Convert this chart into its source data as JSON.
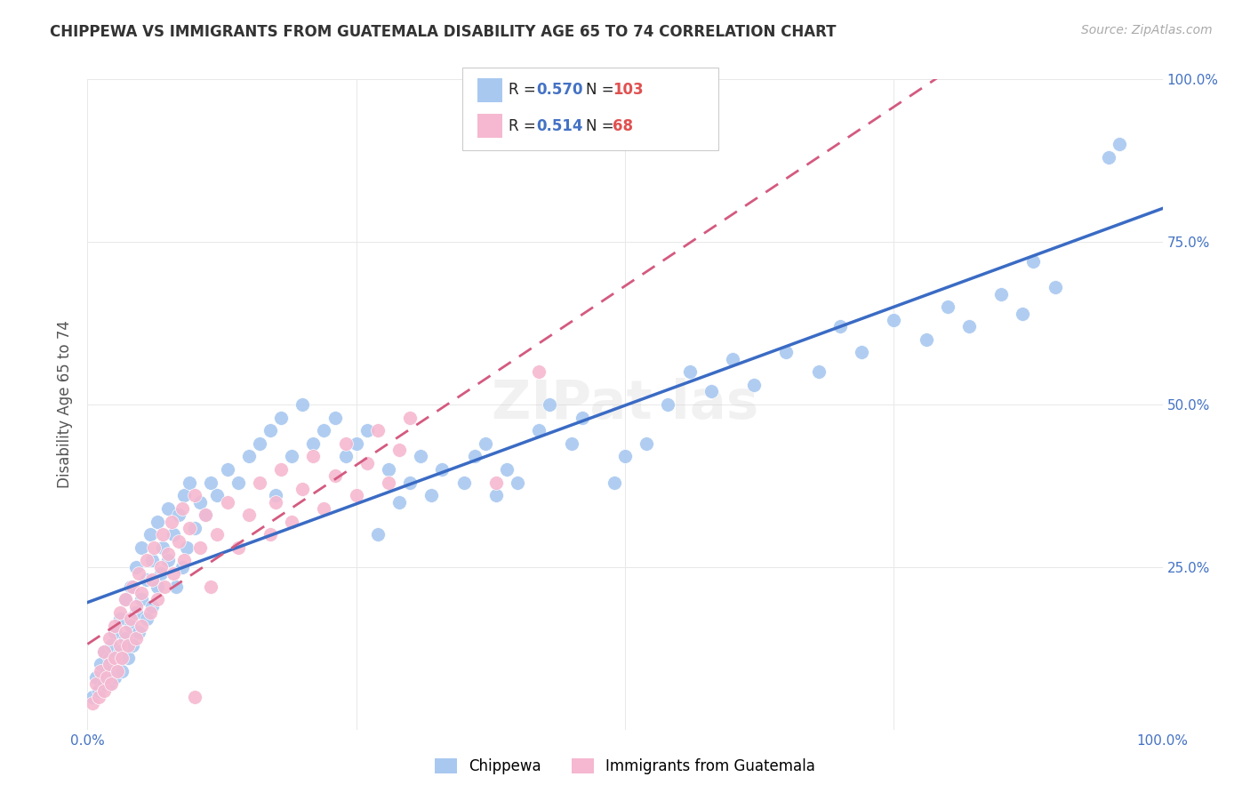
{
  "title": "CHIPPEWA VS IMMIGRANTS FROM GUATEMALA DISABILITY AGE 65 TO 74 CORRELATION CHART",
  "source": "Source: ZipAtlas.com",
  "ylabel": "Disability Age 65 to 74",
  "xlim": [
    0.0,
    1.0
  ],
  "ylim": [
    0.0,
    1.0
  ],
  "chippewa_R": 0.57,
  "chippewa_N": 103,
  "guatemala_R": 0.514,
  "guatemala_N": 68,
  "chippewa_color": "#a8c8f0",
  "chippewa_line_color": "#3a6bc4",
  "guatemala_color": "#f5b8d0",
  "guatemala_line_color": "#d45a80",
  "background_color": "#ffffff",
  "grid_color": "#e8e8e8",
  "chippewa_scatter": [
    [
      0.005,
      0.05
    ],
    [
      0.008,
      0.08
    ],
    [
      0.01,
      0.06
    ],
    [
      0.012,
      0.1
    ],
    [
      0.015,
      0.07
    ],
    [
      0.015,
      0.12
    ],
    [
      0.018,
      0.09
    ],
    [
      0.02,
      0.11
    ],
    [
      0.02,
      0.07
    ],
    [
      0.022,
      0.13
    ],
    [
      0.025,
      0.08
    ],
    [
      0.025,
      0.15
    ],
    [
      0.028,
      0.1
    ],
    [
      0.03,
      0.12
    ],
    [
      0.03,
      0.17
    ],
    [
      0.032,
      0.09
    ],
    [
      0.035,
      0.14
    ],
    [
      0.035,
      0.2
    ],
    [
      0.038,
      0.11
    ],
    [
      0.04,
      0.16
    ],
    [
      0.04,
      0.22
    ],
    [
      0.042,
      0.13
    ],
    [
      0.045,
      0.18
    ],
    [
      0.045,
      0.25
    ],
    [
      0.048,
      0.15
    ],
    [
      0.05,
      0.2
    ],
    [
      0.05,
      0.28
    ],
    [
      0.055,
      0.17
    ],
    [
      0.055,
      0.23
    ],
    [
      0.058,
      0.3
    ],
    [
      0.06,
      0.19
    ],
    [
      0.06,
      0.26
    ],
    [
      0.065,
      0.22
    ],
    [
      0.065,
      0.32
    ],
    [
      0.068,
      0.24
    ],
    [
      0.07,
      0.28
    ],
    [
      0.075,
      0.26
    ],
    [
      0.075,
      0.34
    ],
    [
      0.08,
      0.3
    ],
    [
      0.082,
      0.22
    ],
    [
      0.085,
      0.33
    ],
    [
      0.088,
      0.25
    ],
    [
      0.09,
      0.36
    ],
    [
      0.092,
      0.28
    ],
    [
      0.095,
      0.38
    ],
    [
      0.1,
      0.31
    ],
    [
      0.105,
      0.35
    ],
    [
      0.11,
      0.33
    ],
    [
      0.115,
      0.38
    ],
    [
      0.12,
      0.36
    ],
    [
      0.13,
      0.4
    ],
    [
      0.14,
      0.38
    ],
    [
      0.15,
      0.42
    ],
    [
      0.16,
      0.44
    ],
    [
      0.17,
      0.46
    ],
    [
      0.175,
      0.36
    ],
    [
      0.18,
      0.48
    ],
    [
      0.19,
      0.42
    ],
    [
      0.2,
      0.5
    ],
    [
      0.21,
      0.44
    ],
    [
      0.22,
      0.46
    ],
    [
      0.23,
      0.48
    ],
    [
      0.24,
      0.42
    ],
    [
      0.25,
      0.44
    ],
    [
      0.26,
      0.46
    ],
    [
      0.27,
      0.3
    ],
    [
      0.28,
      0.4
    ],
    [
      0.29,
      0.35
    ],
    [
      0.3,
      0.38
    ],
    [
      0.31,
      0.42
    ],
    [
      0.32,
      0.36
    ],
    [
      0.33,
      0.4
    ],
    [
      0.35,
      0.38
    ],
    [
      0.36,
      0.42
    ],
    [
      0.37,
      0.44
    ],
    [
      0.38,
      0.36
    ],
    [
      0.39,
      0.4
    ],
    [
      0.4,
      0.38
    ],
    [
      0.42,
      0.46
    ],
    [
      0.43,
      0.5
    ],
    [
      0.45,
      0.44
    ],
    [
      0.46,
      0.48
    ],
    [
      0.49,
      0.38
    ],
    [
      0.5,
      0.42
    ],
    [
      0.52,
      0.44
    ],
    [
      0.54,
      0.5
    ],
    [
      0.56,
      0.55
    ],
    [
      0.58,
      0.52
    ],
    [
      0.6,
      0.57
    ],
    [
      0.62,
      0.53
    ],
    [
      0.65,
      0.58
    ],
    [
      0.68,
      0.55
    ],
    [
      0.7,
      0.62
    ],
    [
      0.72,
      0.58
    ],
    [
      0.75,
      0.63
    ],
    [
      0.78,
      0.6
    ],
    [
      0.8,
      0.65
    ],
    [
      0.82,
      0.62
    ],
    [
      0.85,
      0.67
    ],
    [
      0.87,
      0.64
    ],
    [
      0.88,
      0.72
    ],
    [
      0.9,
      0.68
    ],
    [
      0.95,
      0.88
    ],
    [
      0.96,
      0.9
    ]
  ],
  "guatemala_scatter": [
    [
      0.005,
      0.04
    ],
    [
      0.008,
      0.07
    ],
    [
      0.01,
      0.05
    ],
    [
      0.012,
      0.09
    ],
    [
      0.015,
      0.06
    ],
    [
      0.015,
      0.12
    ],
    [
      0.018,
      0.08
    ],
    [
      0.02,
      0.1
    ],
    [
      0.02,
      0.14
    ],
    [
      0.022,
      0.07
    ],
    [
      0.025,
      0.11
    ],
    [
      0.025,
      0.16
    ],
    [
      0.028,
      0.09
    ],
    [
      0.03,
      0.13
    ],
    [
      0.03,
      0.18
    ],
    [
      0.032,
      0.11
    ],
    [
      0.035,
      0.15
    ],
    [
      0.035,
      0.2
    ],
    [
      0.038,
      0.13
    ],
    [
      0.04,
      0.17
    ],
    [
      0.042,
      0.22
    ],
    [
      0.045,
      0.14
    ],
    [
      0.045,
      0.19
    ],
    [
      0.048,
      0.24
    ],
    [
      0.05,
      0.16
    ],
    [
      0.05,
      0.21
    ],
    [
      0.055,
      0.26
    ],
    [
      0.058,
      0.18
    ],
    [
      0.06,
      0.23
    ],
    [
      0.062,
      0.28
    ],
    [
      0.065,
      0.2
    ],
    [
      0.068,
      0.25
    ],
    [
      0.07,
      0.3
    ],
    [
      0.072,
      0.22
    ],
    [
      0.075,
      0.27
    ],
    [
      0.078,
      0.32
    ],
    [
      0.08,
      0.24
    ],
    [
      0.085,
      0.29
    ],
    [
      0.088,
      0.34
    ],
    [
      0.09,
      0.26
    ],
    [
      0.095,
      0.31
    ],
    [
      0.1,
      0.36
    ],
    [
      0.105,
      0.28
    ],
    [
      0.11,
      0.33
    ],
    [
      0.115,
      0.22
    ],
    [
      0.12,
      0.3
    ],
    [
      0.13,
      0.35
    ],
    [
      0.14,
      0.28
    ],
    [
      0.15,
      0.33
    ],
    [
      0.16,
      0.38
    ],
    [
      0.17,
      0.3
    ],
    [
      0.175,
      0.35
    ],
    [
      0.18,
      0.4
    ],
    [
      0.19,
      0.32
    ],
    [
      0.2,
      0.37
    ],
    [
      0.21,
      0.42
    ],
    [
      0.22,
      0.34
    ],
    [
      0.23,
      0.39
    ],
    [
      0.24,
      0.44
    ],
    [
      0.25,
      0.36
    ],
    [
      0.26,
      0.41
    ],
    [
      0.27,
      0.46
    ],
    [
      0.28,
      0.38
    ],
    [
      0.29,
      0.43
    ],
    [
      0.3,
      0.48
    ],
    [
      0.38,
      0.38
    ],
    [
      0.42,
      0.55
    ],
    [
      0.1,
      0.05
    ]
  ]
}
